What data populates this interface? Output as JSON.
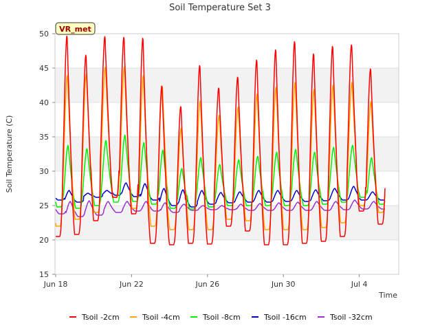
{
  "chart_data": {
    "type": "line",
    "title": "Soil Temperature Set 3",
    "xlabel": "Time",
    "ylabel": "Soil Temperature (C)",
    "ylim": [
      15,
      50
    ],
    "y_ticks": [
      15,
      20,
      25,
      30,
      35,
      40,
      45,
      50
    ],
    "xlim": [
      "Jun 18",
      "Jul 6"
    ],
    "x_ticks": [
      "Jun 18",
      "Jun 22",
      "Jun 26",
      "Jun 30",
      "Jul 4"
    ],
    "grid": true,
    "legend_position": "bottom",
    "annotation": "VR_met",
    "days": [
      "Jun 18",
      "Jun 19",
      "Jun 20",
      "Jun 21",
      "Jun 22",
      "Jun 23",
      "Jun 24",
      "Jun 25",
      "Jun 26",
      "Jun 27",
      "Jun 28",
      "Jun 29",
      "Jun 30",
      "Jul 1",
      "Jul 2",
      "Jul 3",
      "Jul 4",
      "Jul 5"
    ],
    "series": [
      {
        "name": "Tsoil -2cm",
        "color": "#ff0000",
        "daily_max": [
          49.8,
          47.0,
          49.7,
          49.6,
          49.5,
          42.5,
          39.5,
          45.5,
          42.2,
          43.8,
          46.3,
          47.8,
          49.0,
          47.2,
          48.3,
          48.5,
          45.0,
          45.0
        ],
        "daily_min": [
          20.5,
          20.8,
          22.8,
          26.2,
          23.8,
          19.5,
          19.3,
          19.5,
          19.4,
          22.0,
          21.3,
          19.3,
          19.3,
          19.5,
          19.8,
          20.5,
          24.2,
          22.3
        ]
      },
      {
        "name": "Tsoil -4cm",
        "color": "#ffa500",
        "daily_max": [
          44.0,
          44.2,
          45.2,
          45.2,
          44.0,
          42.5,
          36.3,
          40.3,
          38.2,
          39.4,
          41.3,
          42.3,
          43.0,
          42.0,
          42.6,
          43.0,
          40.2,
          40.0
        ],
        "daily_min": [
          22.0,
          23.0,
          24.0,
          26.2,
          24.6,
          22.0,
          21.5,
          21.5,
          21.5,
          23.0,
          22.8,
          21.5,
          21.5,
          21.5,
          21.8,
          22.5,
          25.0,
          24.0
        ]
      },
      {
        "name": "Tsoil -8cm",
        "color": "#00ee00",
        "daily_max": [
          33.8,
          33.3,
          34.5,
          35.3,
          34.2,
          33.1,
          30.4,
          32.0,
          31.0,
          31.7,
          32.2,
          32.8,
          33.2,
          32.8,
          33.5,
          33.8,
          32.0,
          32.0
        ],
        "daily_min": [
          24.8,
          24.6,
          25.0,
          25.5,
          25.6,
          25.2,
          24.6,
          24.5,
          24.8,
          25.0,
          25.0,
          25.0,
          25.0,
          25.0,
          25.2,
          25.5,
          26.2,
          25.2
        ]
      },
      {
        "name": "Tsoil -16cm",
        "color": "#0000cc",
        "daily_max": [
          27.2,
          26.8,
          27.2,
          28.3,
          28.2,
          27.5,
          27.3,
          27.2,
          26.9,
          27.0,
          27.2,
          27.2,
          27.2,
          27.3,
          27.5,
          27.8,
          27.0,
          27.0
        ],
        "daily_min": [
          25.8,
          25.5,
          26.2,
          26.5,
          26.3,
          25.8,
          25.0,
          24.8,
          25.2,
          25.4,
          25.5,
          25.5,
          25.6,
          25.6,
          25.7,
          25.8,
          25.8,
          25.8
        ]
      },
      {
        "name": "Tsoil -32cm",
        "color": "#9932cc",
        "daily_max": [
          25.6,
          25.7,
          25.6,
          25.6,
          25.6,
          25.4,
          25.2,
          25.0,
          25.0,
          25.2,
          25.3,
          25.4,
          25.5,
          25.6,
          25.6,
          25.8,
          25.6,
          25.5
        ],
        "daily_min": [
          23.8,
          23.4,
          23.6,
          24.0,
          24.2,
          24.2,
          24.0,
          24.3,
          24.4,
          24.4,
          24.3,
          24.3,
          24.3,
          24.3,
          24.3,
          24.4,
          24.5,
          24.5
        ]
      }
    ]
  }
}
